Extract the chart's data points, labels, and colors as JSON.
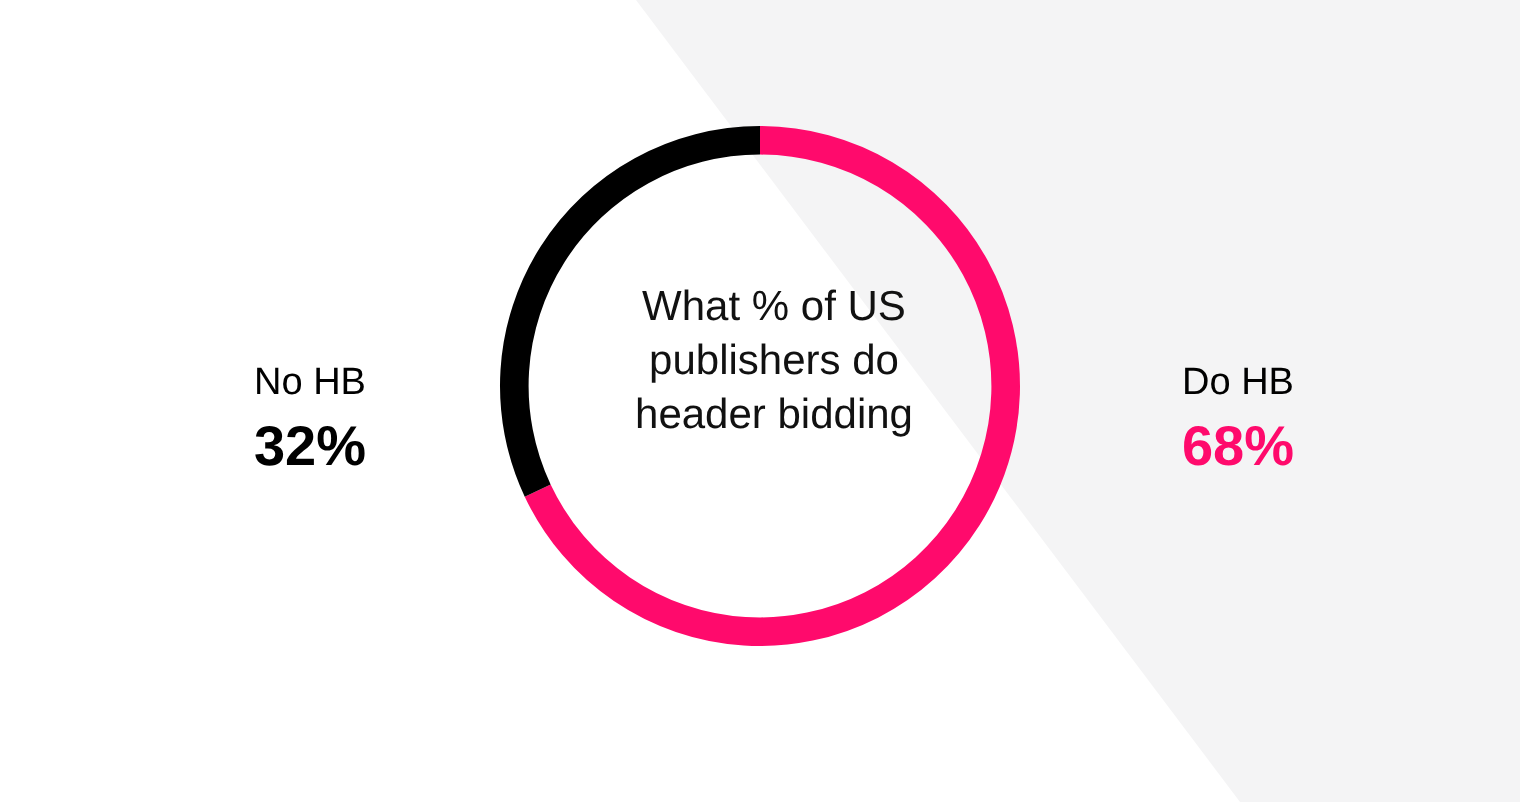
{
  "chart_data": {
    "type": "donut",
    "title": "What % of US publishers do header bidding",
    "categories": [
      "Do HB",
      "No HB"
    ],
    "values": [
      68,
      32
    ],
    "colors": [
      "#ff0a6c",
      "#000000"
    ],
    "value_labels": [
      "68%",
      "32%"
    ],
    "legend": false
  }
}
